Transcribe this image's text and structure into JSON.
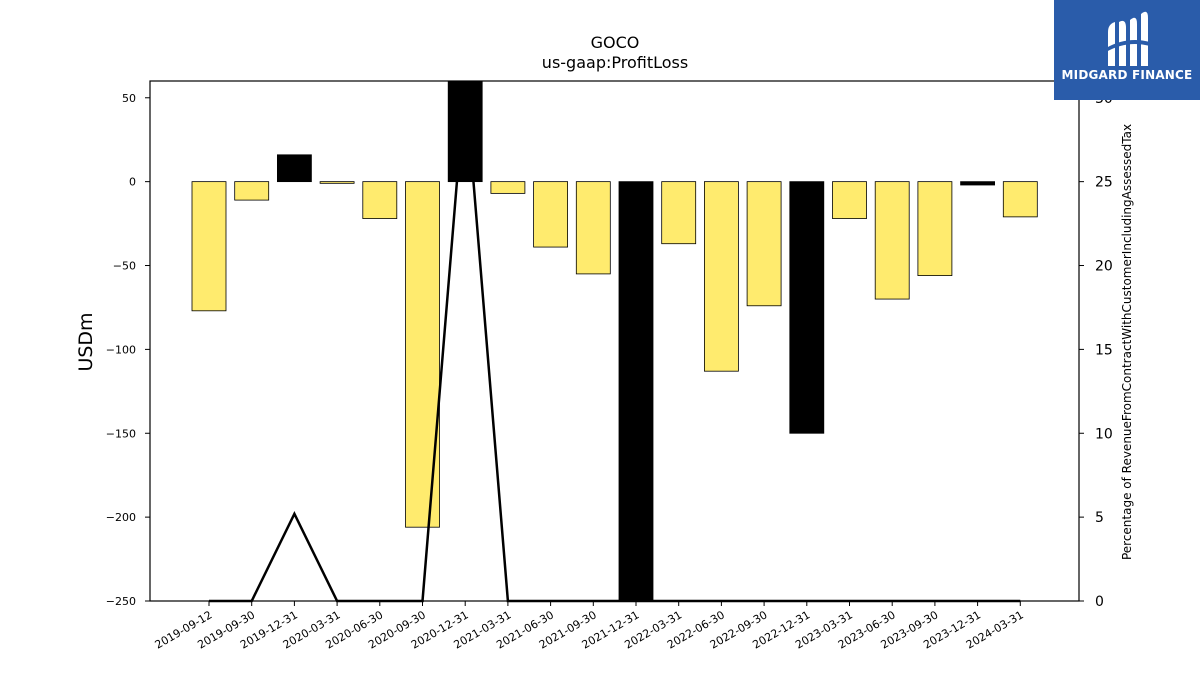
{
  "chart_data": {
    "type": "bar",
    "title": "GOCO",
    "subtitle": "us-gaap:ProfitLoss",
    "ylabel": "USDm",
    "y2label": "Percentage of RevenueFromContractWithCustomerIncludingAssessedTax",
    "ylim": [
      -250,
      60
    ],
    "y2lim": [
      0,
      31
    ],
    "yticks": [
      50,
      0,
      -50,
      -100,
      -150,
      -200,
      -250
    ],
    "y2ticks": [
      0,
      5,
      10,
      15,
      20,
      25,
      30
    ],
    "categories": [
      "2019-09-12",
      "2019-09-30",
      "2019-12-31",
      "2020-03-31",
      "2020-06-30",
      "2020-09-30",
      "2020-12-31",
      "2021-03-31",
      "2021-06-30",
      "2021-09-30",
      "2021-12-31",
      "2022-03-31",
      "2022-06-30",
      "2022-09-30",
      "2022-12-31",
      "2023-03-31",
      "2023-06-30",
      "2023-09-30",
      "2023-12-31",
      "2024-03-31"
    ],
    "series": [
      {
        "values": [
          -77,
          -11,
          16,
          -1,
          -22,
          -206,
          60,
          -7,
          -39,
          -55,
          -250,
          -37,
          -113,
          -74,
          -150,
          -22,
          -70,
          -56,
          -2,
          -21
        ],
        "colors": [
          "#ffeb6e",
          "#ffeb6e",
          "#000000",
          "#ffeb6e",
          "#ffeb6e",
          "#ffeb6e",
          "#000000",
          "#ffeb6e",
          "#ffeb6e",
          "#ffeb6e",
          "#000000",
          "#ffeb6e",
          "#ffeb6e",
          "#ffeb6e",
          "#000000",
          "#ffeb6e",
          "#ffeb6e",
          "#ffeb6e",
          "#000000",
          "#ffeb6e"
        ]
      },
      {
        "axis": "right",
        "type": "line",
        "values": [
          0,
          0,
          5.2,
          0,
          0,
          0,
          31,
          0,
          0,
          0,
          0,
          0,
          0,
          0,
          0,
          0,
          0,
          0,
          0,
          0
        ]
      }
    ],
    "grid": false
  },
  "logo": {
    "text": "MIDGARD FINANCE",
    "icon": "midgard-logo-icon",
    "color": "#2a5caa"
  }
}
